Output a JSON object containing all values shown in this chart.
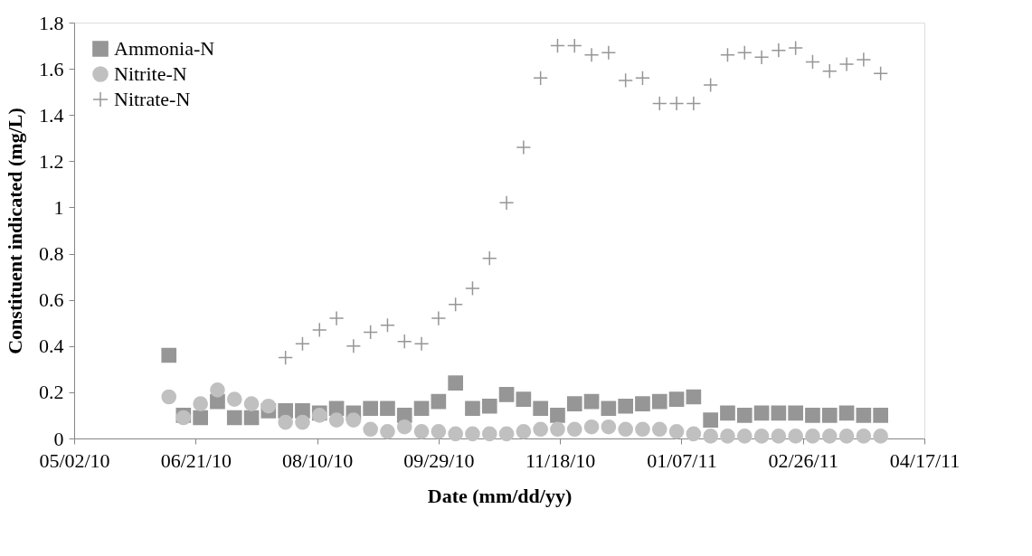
{
  "chart_data": {
    "type": "scatter",
    "xlabel": "Date (mm/dd/yy)",
    "ylabel": "Constituent indicated (mg/L)",
    "x": [
      "2010-06-10",
      "2010-06-16",
      "2010-06-23",
      "2010-06-30",
      "2010-07-07",
      "2010-07-14",
      "2010-07-21",
      "2010-07-28",
      "2010-08-04",
      "2010-08-11",
      "2010-08-18",
      "2010-08-25",
      "2010-09-01",
      "2010-09-08",
      "2010-09-15",
      "2010-09-22",
      "2010-09-29",
      "2010-10-06",
      "2010-10-13",
      "2010-10-20",
      "2010-10-27",
      "2010-11-03",
      "2010-11-10",
      "2010-11-17",
      "2010-11-24",
      "2010-12-01",
      "2010-12-08",
      "2010-12-15",
      "2010-12-22",
      "2010-12-29",
      "2011-01-05",
      "2011-01-12",
      "2011-01-19",
      "2011-01-26",
      "2011-02-02",
      "2011-02-09",
      "2011-02-16",
      "2011-02-23",
      "2011-03-02",
      "2011-03-09",
      "2011-03-16",
      "2011-03-23",
      "2011-03-30"
    ],
    "series": [
      {
        "name": "Ammonia-N",
        "color": "#969696",
        "marker": "square",
        "values": [
          0.36,
          0.1,
          0.09,
          0.16,
          0.09,
          0.09,
          0.12,
          0.12,
          0.12,
          0.11,
          0.13,
          0.11,
          0.13,
          0.13,
          0.1,
          0.13,
          0.16,
          0.24,
          0.13,
          0.14,
          0.19,
          0.17,
          0.13,
          0.1,
          0.15,
          0.16,
          0.13,
          0.14,
          0.15,
          0.16,
          0.17,
          0.18,
          0.08,
          0.11,
          0.1,
          0.11,
          0.11,
          0.11,
          0.1,
          0.1,
          0.11,
          0.1,
          0.1
        ]
      },
      {
        "name": "Nitrite-N",
        "color": "#c0c0c0",
        "marker": "circle",
        "values": [
          0.18,
          0.09,
          0.15,
          0.21,
          0.17,
          0.15,
          0.14,
          0.07,
          0.07,
          0.1,
          0.08,
          0.08,
          0.04,
          0.03,
          0.05,
          0.03,
          0.03,
          0.02,
          0.02,
          0.02,
          0.02,
          0.03,
          0.04,
          0.04,
          0.04,
          0.05,
          0.05,
          0.04,
          0.04,
          0.04,
          0.03,
          0.02,
          0.01,
          0.01,
          0.01,
          0.01,
          0.01,
          0.01,
          0.01,
          0.01,
          0.01,
          0.01,
          0.01
        ]
      },
      {
        "name": "Nitrate-N",
        "color": "#969696",
        "marker": "cross",
        "values": [
          null,
          null,
          null,
          null,
          null,
          null,
          null,
          0.35,
          0.41,
          0.47,
          0.52,
          0.4,
          0.46,
          0.49,
          0.42,
          0.41,
          0.52,
          0.58,
          0.65,
          0.78,
          1.02,
          1.26,
          1.56,
          1.7,
          1.7,
          1.66,
          1.67,
          1.55,
          1.56,
          1.45,
          1.45,
          1.45,
          1.53,
          1.66,
          1.67,
          1.65,
          1.68,
          1.69,
          1.63,
          1.59,
          1.62,
          1.64,
          1.58
        ]
      }
    ],
    "xlim": [
      "2010-05-02",
      "2011-04-17"
    ],
    "xticks": [
      {
        "value": "2010-05-02",
        "label": "05/02/10"
      },
      {
        "value": "2010-06-21",
        "label": "06/21/10"
      },
      {
        "value": "2010-08-10",
        "label": "08/10/10"
      },
      {
        "value": "2010-09-29",
        "label": "09/29/10"
      },
      {
        "value": "2010-11-18",
        "label": "11/18/10"
      },
      {
        "value": "2011-01-07",
        "label": "01/07/11"
      },
      {
        "value": "2011-02-26",
        "label": "02/26/11"
      },
      {
        "value": "2011-04-17",
        "label": "04/17/11"
      }
    ],
    "ylim": [
      0,
      1.8
    ],
    "yticks": [
      0,
      0.2,
      0.4,
      0.6,
      0.8,
      1,
      1.2,
      1.4,
      1.6,
      1.8
    ],
    "grid": false,
    "legend": "top left"
  }
}
